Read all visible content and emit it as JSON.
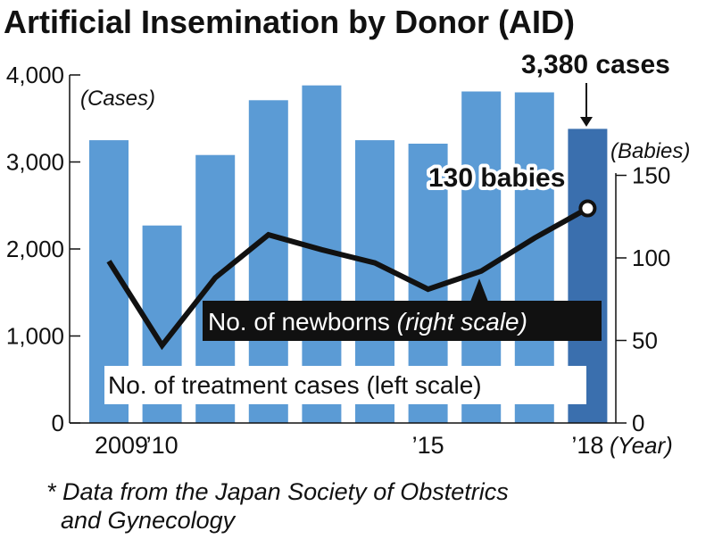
{
  "title": "Artificial Insemination by Donor (AID)",
  "footnote": {
    "line1": "* Data from the Japan Society of Obstetrics",
    "line2": "and Gynecology"
  },
  "colors": {
    "bar": "#5b9bd5",
    "bar_highlight": "#3a6fae",
    "line": "#111111",
    "text": "#111111"
  },
  "chart_data": {
    "type": "bar",
    "categories": [
      "2009",
      "2010",
      "2011",
      "2012",
      "2013",
      "2014",
      "2015",
      "2016",
      "2017",
      "2018"
    ],
    "x_tick_labels": [
      "2009",
      "’10",
      "",
      "",
      "",
      "",
      "’15",
      "",
      "",
      "’18"
    ],
    "x_unit": "(Year)",
    "left_axis": {
      "unit": "(Cases)",
      "ylim": [
        0,
        4000
      ],
      "ticks": [
        0,
        1000,
        2000,
        3000,
        4000
      ],
      "tick_labels": [
        "0",
        "1,000",
        "2,000",
        "3,000",
        "4,000"
      ]
    },
    "right_axis": {
      "unit": "(Babies)",
      "ylim": [
        0,
        200
      ],
      "ticks": [
        0,
        50,
        100,
        150
      ],
      "tick_labels": [
        "0",
        "50",
        "100",
        "150"
      ]
    },
    "series": [
      {
        "name": "No. of treatment cases (left scale)",
        "type": "bar",
        "axis": "left",
        "values": [
          3250,
          2270,
          3080,
          3710,
          3880,
          3250,
          3210,
          3810,
          3800,
          3380
        ]
      },
      {
        "name_prefix": "No. of newborns ",
        "name_suffix": "(right scale)",
        "type": "line",
        "axis": "right",
        "values": [
          98,
          47,
          88,
          114,
          105,
          97,
          81,
          92,
          112,
          130
        ]
      }
    ],
    "annotations": {
      "cases_callout": "3,380 cases",
      "babies_callout": "130 babies"
    }
  }
}
